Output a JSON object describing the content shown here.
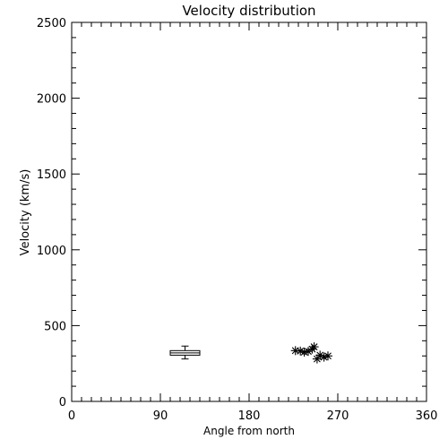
{
  "chart_data": {
    "type": "scatter",
    "title": "Velocity distribution",
    "xlabel": "Angle from north",
    "ylabel": "Velocity (km/s)",
    "xlim": [
      0,
      360
    ],
    "ylim": [
      0,
      2500
    ],
    "xticks": [
      "0",
      "90",
      "180",
      "270",
      "360"
    ],
    "xtick_values": [
      0,
      90,
      180,
      270,
      360
    ],
    "yticks": [
      "0",
      "500",
      "1000",
      "1500",
      "2000",
      "2500"
    ],
    "ytick_values": [
      0,
      500,
      1000,
      1500,
      2000,
      2500
    ],
    "grid": false,
    "boxplot": {
      "x_center": 115,
      "x_half_width": 15,
      "whisker_low": 280,
      "q1": 305,
      "median": 320,
      "q3": 335,
      "whisker_high": 365
    },
    "points": [
      {
        "x": 227,
        "y": 335
      },
      {
        "x": 232,
        "y": 332
      },
      {
        "x": 236,
        "y": 325
      },
      {
        "x": 240,
        "y": 330
      },
      {
        "x": 244,
        "y": 345
      },
      {
        "x": 246,
        "y": 360
      },
      {
        "x": 249,
        "y": 280
      },
      {
        "x": 252,
        "y": 305
      },
      {
        "x": 256,
        "y": 292
      },
      {
        "x": 260,
        "y": 300
      }
    ],
    "marker": "asterisk"
  }
}
